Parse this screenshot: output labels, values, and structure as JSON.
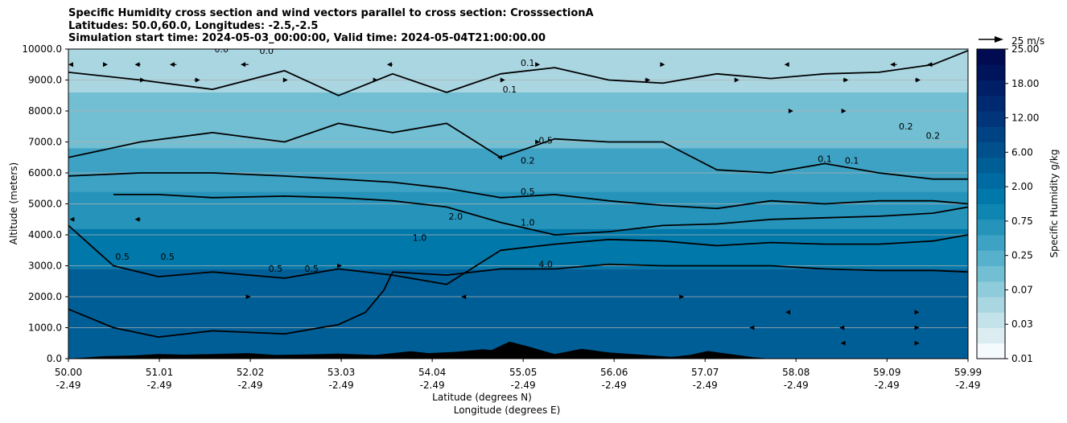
{
  "chart_data": {
    "type": "heatmap",
    "title_lines": [
      "Specific Humidity cross section and wind vectors parallel to cross section: CrosssectionA",
      "Latitudes: 50.0,60.0, Longitudes: -2.5,-2.5",
      "Simulation start time: 2024-05-03_00:00:00, Valid time: 2024-05-04T21:00:00.00"
    ],
    "ylabel": "Altitude (meters)",
    "xlabel_lines": [
      "Latitude (degrees N)",
      "Longitude (degrees E)"
    ],
    "ylim": [
      0,
      10000
    ],
    "xlim": [
      50.0,
      59.99
    ],
    "y_ticks": [
      "0.0",
      "1000.0",
      "2000.0",
      "3000.0",
      "4000.0",
      "5000.0",
      "6000.0",
      "7000.0",
      "8000.0",
      "9000.0",
      "10000.0"
    ],
    "x_ticks": [
      {
        "lat": "50.00",
        "lon": "-2.49"
      },
      {
        "lat": "51.01",
        "lon": "-2.49"
      },
      {
        "lat": "52.02",
        "lon": "-2.49"
      },
      {
        "lat": "53.03",
        "lon": "-2.49"
      },
      {
        "lat": "54.04",
        "lon": "-2.49"
      },
      {
        "lat": "55.05",
        "lon": "-2.49"
      },
      {
        "lat": "56.06",
        "lon": "-2.49"
      },
      {
        "lat": "57.07",
        "lon": "-2.49"
      },
      {
        "lat": "58.08",
        "lon": "-2.49"
      },
      {
        "lat": "59.09",
        "lon": "-2.49"
      },
      {
        "lat": "59.99",
        "lon": "-2.49"
      }
    ],
    "grid": "horizontal",
    "colorbar": {
      "label": "Specific Humidity g/kg",
      "ticks": [
        "0.01",
        "0.03",
        "0.07",
        "0.25",
        "0.75",
        "2.00",
        "6.00",
        "12.00",
        "18.00",
        "25.00"
      ],
      "colors": [
        "#f5fafc",
        "#dcedf2",
        "#c4e2ea",
        "#aad6e2",
        "#8ecbdb",
        "#72bed3",
        "#57b0cc",
        "#3ea2c4",
        "#2694ba",
        "#0f86b1",
        "#0079aa",
        "#006ba2",
        "#005e97",
        "#00508c",
        "#004384",
        "#00357a",
        "#002a70",
        "#001f66",
        "#00145b",
        "#000b52"
      ]
    },
    "wind_key": {
      "label": "25 m/s",
      "value": 25
    },
    "humidity_bands": [
      {
        "lo": 0.07,
        "hi": 0.25,
        "y_top": 10000,
        "y_bottom": 8600,
        "color": "#aad6e2"
      },
      {
        "lo": 0.25,
        "hi": 0.5,
        "y_top": 8600,
        "y_bottom": 6800,
        "color": "#72bed3"
      },
      {
        "lo": 0.5,
        "hi": 1.0,
        "y_top": 6800,
        "y_bottom": 5400,
        "color": "#3ea2c4"
      },
      {
        "lo": 1.0,
        "hi": 2.0,
        "y_top": 5400,
        "y_bottom": 4200,
        "color": "#2694ba"
      },
      {
        "lo": 2.0,
        "hi": 4.0,
        "y_top": 4200,
        "y_bottom": 2900,
        "color": "#0079aa"
      },
      {
        "lo": 4.0,
        "hi": 6.0,
        "y_top": 2900,
        "y_bottom": 0,
        "color": "#005e97"
      }
    ],
    "contours": [
      {
        "level": "0.1",
        "x": [
          50.0,
          50.8,
          51.6,
          52.4,
          53.0,
          53.6,
          54.2,
          54.8,
          55.4,
          56.0,
          56.6,
          57.2,
          57.8,
          58.4,
          59.0,
          59.6,
          59.99
        ],
        "y": [
          9250,
          9000,
          8700,
          9300,
          8500,
          9200,
          8600,
          9200,
          9400,
          9000,
          8900,
          9200,
          9050,
          9200,
          9250,
          9500,
          9950
        ]
      },
      {
        "level": "0.2",
        "x": [
          50.0,
          50.8,
          51.6,
          52.4,
          53.0,
          53.6,
          54.2,
          54.8,
          55.4,
          56.0,
          56.6,
          57.2,
          57.8,
          58.4,
          59.0,
          59.6,
          59.99
        ],
        "y": [
          6500,
          7000,
          7300,
          7000,
          7600,
          7300,
          7600,
          6500,
          7100,
          7000,
          7000,
          6100,
          6000,
          6300,
          6000,
          5800,
          5800
        ]
      },
      {
        "level": "0.5",
        "x": [
          50.0,
          50.8,
          51.6,
          52.4,
          53.0,
          53.6,
          54.2,
          54.8,
          55.4,
          56.0,
          56.6,
          57.2,
          57.8,
          58.4,
          59.0,
          59.6,
          59.99
        ],
        "y": [
          5900,
          6000,
          6000,
          5900,
          5800,
          5700,
          5500,
          5200,
          5300,
          5100,
          4950,
          4850,
          5100,
          5000,
          5100,
          5100,
          5000
        ]
      },
      {
        "level": "1.0",
        "x": [
          50.5,
          51.0,
          51.6,
          52.4,
          53.0,
          53.6,
          54.2,
          54.8,
          55.4,
          56.0,
          56.6,
          57.2,
          57.8,
          58.4,
          59.0,
          59.6,
          59.99
        ],
        "y": [
          5300,
          5300,
          5200,
          5250,
          5200,
          5100,
          4900,
          4400,
          4000,
          4100,
          4300,
          4350,
          4500,
          4550,
          4600,
          4700,
          4900
        ]
      },
      {
        "level": "2.0",
        "x": [
          50.0,
          50.5,
          51.0,
          51.6,
          52.4,
          53.0,
          53.6,
          54.2,
          54.8,
          55.4,
          56.0,
          56.6,
          57.2,
          57.8,
          58.4,
          59.0,
          59.6,
          59.99
        ],
        "y": [
          4300,
          3000,
          2650,
          2800,
          2600,
          2900,
          2700,
          2400,
          3500,
          3700,
          3850,
          3800,
          3650,
          3750,
          3700,
          3700,
          3800,
          4000
        ]
      },
      {
        "level": "4.0",
        "x": [
          50.0,
          50.5,
          51.0,
          51.6,
          52.4,
          53.0,
          53.3,
          53.5,
          53.6,
          54.2,
          54.8,
          55.4,
          56.0,
          56.6,
          57.2,
          57.8,
          58.4,
          59.0,
          59.6,
          59.99
        ],
        "y": [
          1600,
          1000,
          700,
          900,
          800,
          1100,
          1500,
          2200,
          2800,
          2700,
          2900,
          2900,
          3050,
          3000,
          3000,
          3000,
          2900,
          2850,
          2850,
          2800
        ]
      }
    ],
    "contour_labels": [
      {
        "text": "0.1",
        "x": 55.1,
        "y": 9450
      },
      {
        "text": "0.1",
        "x": 54.9,
        "y": 8600
      },
      {
        "text": "0.2",
        "x": 55.1,
        "y": 6300
      },
      {
        "text": "0.5",
        "x": 55.3,
        "y": 6950
      },
      {
        "text": "0.5",
        "x": 55.1,
        "y": 5300
      },
      {
        "text": "1.0",
        "x": 55.1,
        "y": 4300
      },
      {
        "text": "2.0",
        "x": 54.3,
        "y": 4500
      },
      {
        "text": "1.0",
        "x": 53.9,
        "y": 3800
      },
      {
        "text": "0.5",
        "x": 50.6,
        "y": 3200
      },
      {
        "text": "0.5",
        "x": 51.1,
        "y": 3200
      },
      {
        "text": "0.5",
        "x": 52.3,
        "y": 2800
      },
      {
        "text": "0.5",
        "x": 52.7,
        "y": 2800
      },
      {
        "text": "4.0",
        "x": 55.3,
        "y": 2950
      },
      {
        "text": "0.1",
        "x": 58.4,
        "y": 6350
      },
      {
        "text": "0.1",
        "x": 58.7,
        "y": 6300
      },
      {
        "text": "0.2",
        "x": 59.3,
        "y": 7400
      },
      {
        "text": "0.2",
        "x": 59.6,
        "y": 7100
      },
      {
        "text": "0.0",
        "x": 51.7,
        "y": 9900
      },
      {
        "text": "0.0",
        "x": 52.2,
        "y": 9850
      }
    ],
    "terrain": {
      "x": [
        50.0,
        50.4,
        50.7,
        51.0,
        51.3,
        51.6,
        52.0,
        52.3,
        52.7,
        53.0,
        53.4,
        53.6,
        53.8,
        54.0,
        54.3,
        54.6,
        54.7,
        54.9,
        55.1,
        55.4,
        55.7,
        56.0,
        56.4,
        56.7,
        56.9,
        57.1,
        57.3,
        57.6,
        57.8,
        58.0,
        59.99
      ],
      "y": [
        0,
        80,
        100,
        150,
        130,
        150,
        180,
        120,
        140,
        160,
        120,
        180,
        240,
        180,
        220,
        300,
        280,
        550,
        400,
        150,
        320,
        200,
        120,
        60,
        120,
        250,
        170,
        50,
        0,
        0,
        0
      ]
    },
    "wind_vectors": [
      {
        "x": 50.05,
        "y": 9500,
        "u": -4
      },
      {
        "x": 50.4,
        "y": 9500,
        "u": 3
      },
      {
        "x": 50.8,
        "y": 9500,
        "u": -5
      },
      {
        "x": 51.2,
        "y": 9500,
        "u": -6
      },
      {
        "x": 52.0,
        "y": 9500,
        "u": -7
      },
      {
        "x": 53.6,
        "y": 9500,
        "u": -5
      },
      {
        "x": 55.2,
        "y": 9500,
        "u": 3
      },
      {
        "x": 56.6,
        "y": 9500,
        "u": 2
      },
      {
        "x": 58.0,
        "y": 9500,
        "u": -4
      },
      {
        "x": 59.2,
        "y": 9500,
        "u": -6
      },
      {
        "x": 59.6,
        "y": 9500,
        "u": -5
      },
      {
        "x": 50.8,
        "y": 9000,
        "u": 4
      },
      {
        "x": 51.4,
        "y": 9000,
        "u": 5
      },
      {
        "x": 52.4,
        "y": 9000,
        "u": 3
      },
      {
        "x": 53.4,
        "y": 9000,
        "u": 3
      },
      {
        "x": 54.8,
        "y": 9000,
        "u": 4
      },
      {
        "x": 56.4,
        "y": 9000,
        "u": 5
      },
      {
        "x": 57.4,
        "y": 9000,
        "u": 4
      },
      {
        "x": 58.6,
        "y": 9000,
        "u": 5
      },
      {
        "x": 59.4,
        "y": 9000,
        "u": 5
      },
      {
        "x": 58.0,
        "y": 8000,
        "u": 4
      },
      {
        "x": 58.6,
        "y": 8000,
        "u": 3
      },
      {
        "x": 55.2,
        "y": 7000,
        "u": 3
      },
      {
        "x": 54.8,
        "y": 6500,
        "u": -3
      },
      {
        "x": 50.8,
        "y": 4500,
        "u": -5
      },
      {
        "x": 50.05,
        "y": 4500,
        "u": -3
      },
      {
        "x": 53.0,
        "y": 3000,
        "u": 3
      },
      {
        "x": 52.0,
        "y": 2000,
        "u": 2
      },
      {
        "x": 54.4,
        "y": 2000,
        "u": -3
      },
      {
        "x": 56.8,
        "y": 2000,
        "u": 3
      },
      {
        "x": 58.0,
        "y": 1500,
        "u": -3
      },
      {
        "x": 59.4,
        "y": 1500,
        "u": 4
      },
      {
        "x": 59.4,
        "y": 1000,
        "u": 4
      },
      {
        "x": 57.6,
        "y": 1000,
        "u": -3
      },
      {
        "x": 58.6,
        "y": 1000,
        "u": -3
      },
      {
        "x": 59.4,
        "y": 500,
        "u": 4
      },
      {
        "x": 58.6,
        "y": 500,
        "u": -2
      }
    ]
  }
}
